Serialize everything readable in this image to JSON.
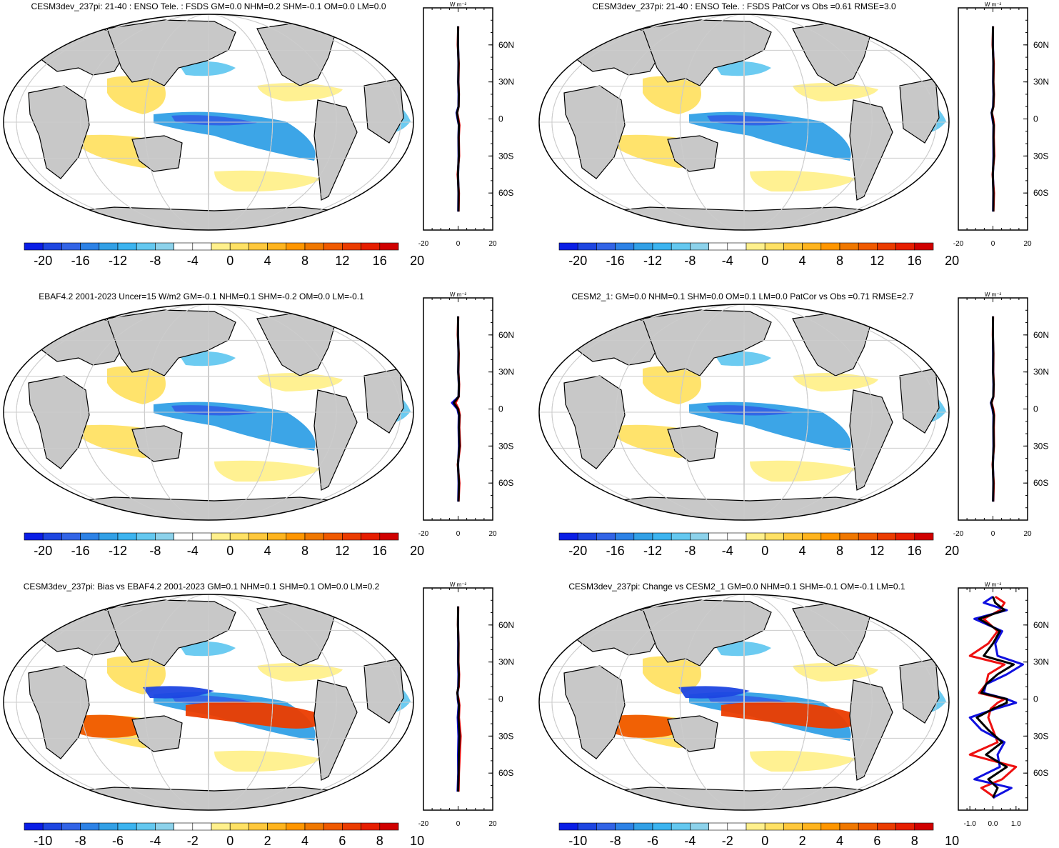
{
  "figure": {
    "unit_label": "W m⁻²",
    "lat_ticks": [
      "60N",
      "30N",
      "0",
      "30S",
      "60S"
    ],
    "lat_values": [
      60,
      30,
      0,
      -30,
      -60
    ],
    "colors": {
      "ocean": "#ffffff",
      "land": "#c8c8c8",
      "blue_line": "#1010e0",
      "red_line": "#ee1010",
      "black_line": "#000000"
    }
  },
  "colorbars": {
    "large": {
      "labels": [
        "-20",
        "-16",
        "-12",
        "-8",
        "-4",
        "0",
        "4",
        "8",
        "12",
        "16",
        "20"
      ],
      "colors": [
        "#0a1ee6",
        "#1e46e1",
        "#3264e6",
        "#2d82e6",
        "#32a0e6",
        "#3cb4f0",
        "#64c8f0",
        "#8cd2eb",
        "#ffffff",
        "#ffffff",
        "#fff08c",
        "#ffe164",
        "#ffc83c",
        "#ffb41e",
        "#ff9600",
        "#f07800",
        "#f05a00",
        "#eb3c00",
        "#e61e00",
        "#d00000"
      ]
    },
    "small": {
      "labels": [
        "-10",
        "-8",
        "-6",
        "-4",
        "-2",
        "0",
        "2",
        "4",
        "6",
        "8",
        "10"
      ],
      "colors": [
        "#0a1ee6",
        "#1e46e1",
        "#3264e6",
        "#2d82e6",
        "#32a0e6",
        "#3cb4f0",
        "#64c8f0",
        "#8cd2eb",
        "#ffffff",
        "#ffffff",
        "#fff08c",
        "#ffe164",
        "#ffc83c",
        "#ffb41e",
        "#ff9600",
        "#f07800",
        "#f05a00",
        "#eb3c00",
        "#e61e00",
        "#d00000"
      ]
    }
  },
  "chart_data": [
    {
      "type": "heatmap",
      "title": "CESM3dev_237pi: 21-40 : ENSO Tele. : FSDS GM=0.0 NHM=0.2 SHM=-0.1 OM=0.0 LM=0.0",
      "colorbar": "large",
      "zonal_profile": {
        "xlim": [
          -20,
          20
        ],
        "xticks": [
          "-20",
          "0",
          "20"
        ],
        "ylim": [
          -90,
          90
        ],
        "lat": [
          -75,
          -60,
          -45,
          -30,
          -15,
          -5,
          0,
          5,
          10,
          20,
          30,
          45,
          60,
          75
        ],
        "series": [
          {
            "name": "model",
            "color": "red",
            "values": [
              0.3,
              0.5,
              -0.3,
              0.6,
              0.4,
              0.8,
              0.2,
              -0.5,
              0.3,
              0.5,
              0.2,
              0.4,
              -0.2,
              0.1
            ]
          },
          {
            "name": "obs",
            "color": "blue",
            "values": [
              0.1,
              0.2,
              0.0,
              0.3,
              0.2,
              0.4,
              -0.3,
              -0.9,
              0.2,
              0.3,
              0.1,
              0.2,
              0.0,
              0.0
            ]
          },
          {
            "name": "mean",
            "color": "black",
            "values": [
              0.2,
              0.3,
              -0.1,
              0.4,
              0.3,
              0.5,
              -0.1,
              -0.6,
              0.3,
              0.4,
              0.1,
              0.3,
              -0.1,
              0.0
            ]
          }
        ]
      }
    },
    {
      "type": "heatmap",
      "title": "CESM3dev_237pi: 21-40 : ENSO Tele. : FSDS PatCor vs Obs =0.61 RMSE=3.0",
      "colorbar": "large",
      "zonal_profile": {
        "xlim": [
          -20,
          20
        ],
        "xticks": [
          "-20",
          "0",
          "20"
        ],
        "ylim": [
          -90,
          90
        ],
        "lat": [
          -75,
          -60,
          -45,
          -30,
          -15,
          -5,
          0,
          5,
          10,
          20,
          30,
          45,
          60,
          75
        ],
        "series": [
          {
            "name": "model",
            "color": "red",
            "values": [
              0.3,
              0.6,
              -0.2,
              0.8,
              0.5,
              0.6,
              0.2,
              -0.6,
              0.3,
              0.6,
              0.3,
              0.5,
              -0.2,
              0.1
            ]
          },
          {
            "name": "obs",
            "color": "blue",
            "values": [
              0.1,
              0.2,
              0.0,
              0.3,
              0.2,
              0.3,
              -0.3,
              -0.8,
              0.1,
              0.3,
              0.1,
              0.2,
              0.0,
              0.0
            ]
          },
          {
            "name": "mean",
            "color": "black",
            "values": [
              0.2,
              0.3,
              -0.1,
              0.5,
              0.3,
              0.4,
              -0.1,
              -0.7,
              0.2,
              0.4,
              0.2,
              0.3,
              -0.1,
              0.0
            ]
          }
        ]
      }
    },
    {
      "type": "heatmap",
      "title": "EBAF4.2 2001-2023 Uncer=15 W/m2 GM=-0.1 NHM=0.1 SHM=-0.2 OM=0.0 LM=-0.1",
      "colorbar": "large",
      "zonal_profile": {
        "xlim": [
          -20,
          20
        ],
        "xticks": [
          "-20",
          "0",
          "20"
        ],
        "ylim": [
          -90,
          90
        ],
        "lat": [
          -75,
          -60,
          -45,
          -30,
          -15,
          -5,
          0,
          5,
          10,
          20,
          30,
          45,
          60,
          75
        ],
        "series": [
          {
            "name": "model",
            "color": "red",
            "values": [
              0.3,
              0.8,
              -0.2,
              1.2,
              0.7,
              1.0,
              0.3,
              -1.5,
              0.4,
              0.6,
              0.2,
              0.4,
              -0.2,
              0.1
            ]
          },
          {
            "name": "obs",
            "color": "blue",
            "values": [
              0.1,
              0.3,
              0.0,
              0.5,
              0.3,
              0.4,
              -0.4,
              -3.5,
              0.3,
              0.4,
              0.1,
              0.2,
              0.0,
              0.0
            ]
          },
          {
            "name": "mean",
            "color": "black",
            "values": [
              0.2,
              0.5,
              -0.1,
              0.8,
              0.5,
              0.7,
              -0.1,
              -2.5,
              0.3,
              0.5,
              0.1,
              0.3,
              -0.1,
              0.0
            ]
          }
        ]
      }
    },
    {
      "type": "heatmap",
      "title": "CESM2_1: GM=0.0 NHM=0.1 SHM=0.0 OM=0.1 LM=0.0 PatCor vs Obs =0.71 RMSE=2.7",
      "colorbar": "large",
      "zonal_profile": {
        "xlim": [
          -20,
          20
        ],
        "xticks": [
          "-20",
          "0",
          "20"
        ],
        "ylim": [
          -90,
          90
        ],
        "lat": [
          -75,
          -60,
          -45,
          -30,
          -15,
          -5,
          0,
          5,
          10,
          20,
          30,
          45,
          60,
          75
        ],
        "series": [
          {
            "name": "model",
            "color": "red",
            "values": [
              0.2,
              0.5,
              -0.2,
              0.6,
              0.5,
              0.7,
              0.2,
              -0.8,
              0.3,
              0.5,
              0.2,
              0.3,
              -0.1,
              0.1
            ]
          },
          {
            "name": "obs",
            "color": "blue",
            "values": [
              0.1,
              0.2,
              0.0,
              0.3,
              0.2,
              0.3,
              -0.3,
              -1.2,
              0.2,
              0.3,
              0.1,
              0.1,
              0.0,
              0.0
            ]
          },
          {
            "name": "mean",
            "color": "black",
            "values": [
              0.1,
              0.3,
              -0.1,
              0.4,
              0.3,
              0.5,
              -0.1,
              -1.0,
              0.2,
              0.4,
              0.1,
              0.2,
              0.0,
              0.0
            ]
          }
        ]
      }
    },
    {
      "type": "heatmap",
      "title": "CESM3dev_237pi: Bias vs EBAF4.2 2001-2023 GM=0.1 NHM=0.1 SHM=0.1 OM=0.0 LM=0.2",
      "colorbar": "small",
      "zonal_profile": {
        "xlim": [
          -20,
          20
        ],
        "xticks": [
          "-20",
          "0",
          "20"
        ],
        "ylim": [
          -90,
          90
        ],
        "lat": [
          -75,
          -60,
          -45,
          -30,
          -15,
          -5,
          0,
          5,
          10,
          20,
          30,
          45,
          60,
          75
        ],
        "series": [
          {
            "name": "model",
            "color": "red",
            "values": [
              0.3,
              0.5,
              1.0,
              1.5,
              0.5,
              0.8,
              0.3,
              -0.5,
              0.4,
              0.6,
              0.2,
              0.3,
              -0.1,
              0.1
            ]
          },
          {
            "name": "obs",
            "color": "blue",
            "values": [
              -0.3,
              0.1,
              0.0,
              0.2,
              -0.2,
              0.3,
              -0.2,
              -0.3,
              0.1,
              0.2,
              0.0,
              0.1,
              0.0,
              0.0
            ]
          },
          {
            "name": "mean",
            "color": "black",
            "values": [
              0.0,
              0.3,
              0.4,
              0.8,
              0.2,
              0.5,
              0.0,
              -0.4,
              0.2,
              0.4,
              0.1,
              0.2,
              -0.1,
              0.0
            ]
          }
        ]
      }
    },
    {
      "type": "heatmap",
      "title": "CESM3dev_237pi: Change vs CESM2_1 GM=0.0 NHM=0.1 SHM=-0.1 OM=-0.1 LM=0.1",
      "colorbar": "small",
      "zonal_profile": {
        "xlim": [
          -1.5,
          1.5
        ],
        "xticks": [
          "-1.0",
          "0.0",
          "1.0"
        ],
        "ylim": [
          -90,
          90
        ],
        "lat": [
          -80,
          -72,
          -65,
          -55,
          -45,
          -35,
          -25,
          -15,
          -8,
          -3,
          0,
          5,
          12,
          20,
          28,
          35,
          45,
          55,
          65,
          72,
          78,
          83
        ],
        "series": [
          {
            "name": "model",
            "color": "red",
            "values": [
              0.1,
              -0.5,
              0.4,
              1.0,
              -1.0,
              0.2,
              0.0,
              -0.2,
              -0.1,
              0.2,
              0.5,
              -0.6,
              -0.3,
              -0.2,
              0.5,
              -1.0,
              -0.2,
              0.2,
              -0.4,
              0.3,
              0.5,
              0.1
            ]
          },
          {
            "name": "obs",
            "color": "blue",
            "values": [
              0.0,
              0.8,
              -0.8,
              0.3,
              0.2,
              0.5,
              -0.5,
              -1.0,
              0.1,
              1.0,
              0.6,
              -0.4,
              -0.3,
              0.6,
              1.3,
              0.2,
              0.1,
              0.4,
              -0.8,
              0.6,
              -0.4,
              0.0
            ]
          },
          {
            "name": "mean",
            "color": "black",
            "values": [
              0.0,
              0.2,
              -0.2,
              0.6,
              -0.3,
              0.4,
              -0.2,
              -0.7,
              0.0,
              0.6,
              0.6,
              -0.5,
              -0.3,
              0.2,
              0.9,
              -0.4,
              0.0,
              0.3,
              -0.6,
              0.5,
              0.1,
              0.0
            ]
          }
        ]
      }
    }
  ]
}
